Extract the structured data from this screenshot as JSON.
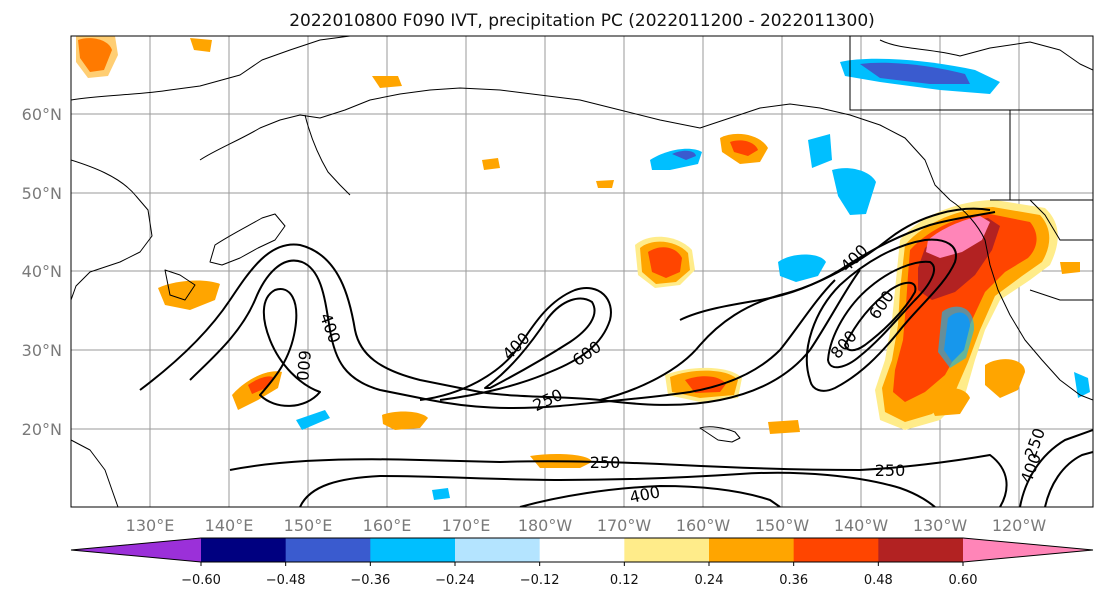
{
  "title": "2022010800 F090 IVT, precipitation PC (2022011200 - 2022011300)",
  "lon_labels": [
    "130°E",
    "140°E",
    "150°E",
    "160°E",
    "170°E",
    "180°W",
    "170°W",
    "160°W",
    "150°W",
    "140°W",
    "130°W",
    "120°W"
  ],
  "lat_labels": [
    "60°N",
    "50°N",
    "40°N",
    "30°N",
    "20°N"
  ],
  "colorbar": {
    "colors": [
      "#9b30d9",
      "#000080",
      "#3a5bcf",
      "#00bfff",
      "#b4e4ff",
      "#ffffff",
      "#ffec8a",
      "#ffa500",
      "#ff4500",
      "#b22222",
      "#ff85b8"
    ],
    "tick_labels": [
      "−0.60",
      "−0.48",
      "−0.36",
      "−0.24",
      "−0.12",
      "0.12",
      "0.24",
      "0.36",
      "0.48",
      "0.60"
    ]
  },
  "contour_labels": [
    "400",
    "600",
    "250",
    "400",
    "600",
    "250",
    "250",
    "400",
    "800",
    "600",
    "400",
    "250",
    "400",
    "250",
    "400",
    "250"
  ]
}
